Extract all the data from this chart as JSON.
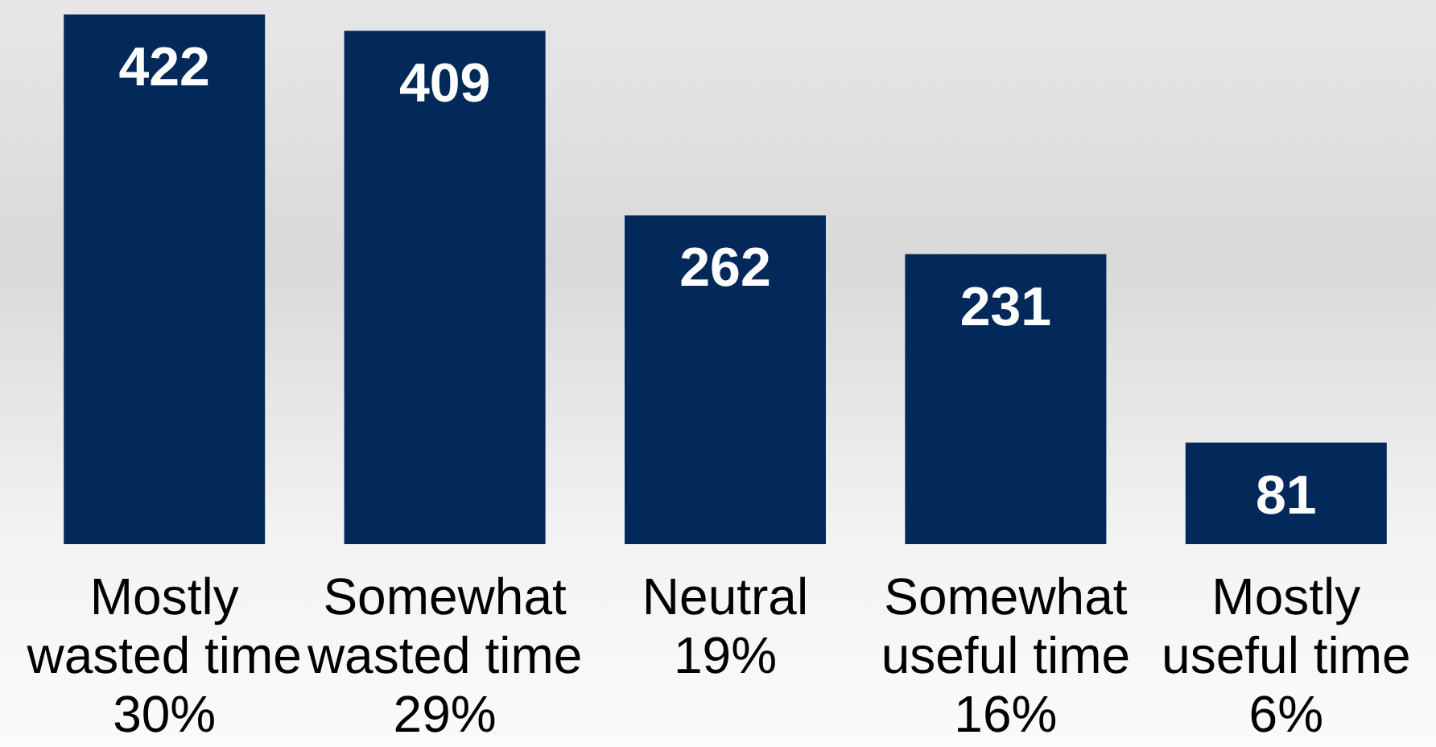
{
  "chart_data": {
    "type": "bar",
    "categories": [
      "Mostly\nwasted time\n30%",
      "Somewhat\nwasted time\n29%",
      "Neutral\n19%",
      "Somewhat\nuseful time\n16%",
      "Mostly\nuseful time\n6%"
    ],
    "values": [
      422,
      409,
      262,
      231,
      81
    ],
    "color": "#03295a",
    "data_labels": true
  }
}
